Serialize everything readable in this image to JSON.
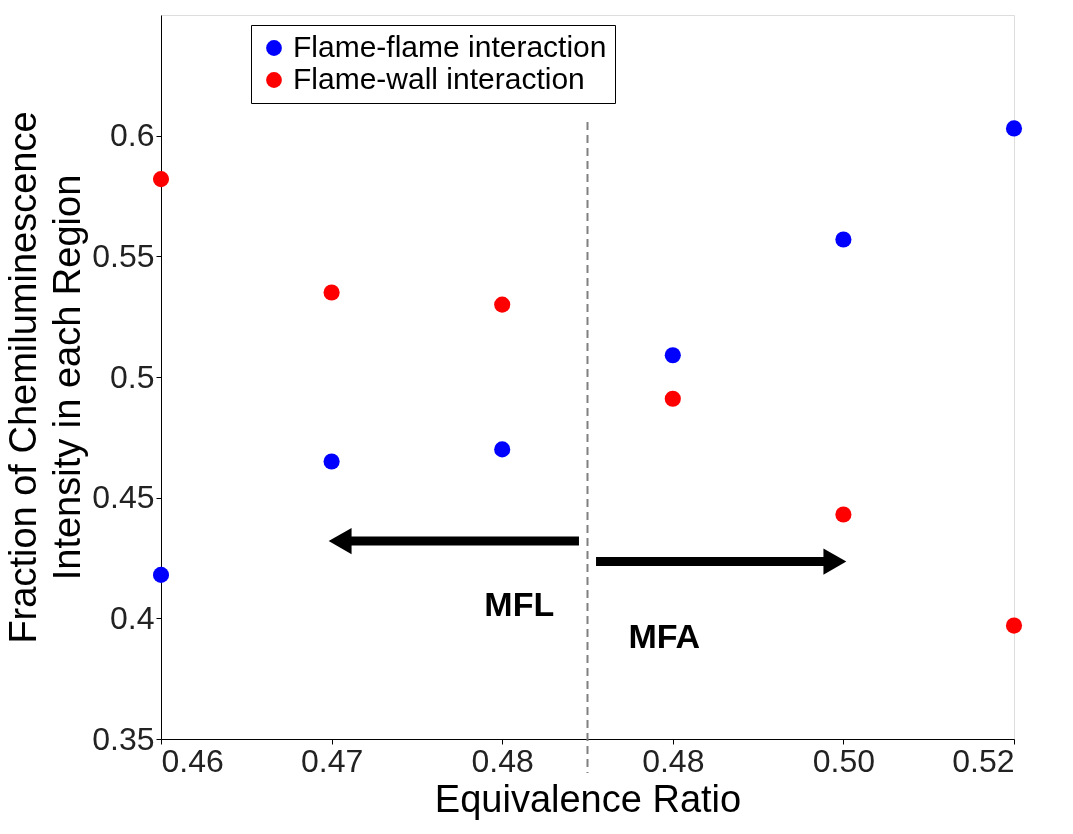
{
  "chart_data": {
    "type": "scatter",
    "xlabel": "Equivalence Ratio",
    "ylabel": "Fraction of Chemiluminescence Intensity in each Region",
    "categories": [
      "0.46",
      "0.47",
      "0.48",
      "0.48",
      "0.50",
      "0.52"
    ],
    "series": [
      {
        "name": "Flame-flame interaction",
        "color": "#0000ff",
        "values": [
          0.418,
          0.465,
          0.47,
          0.509,
          0.557,
          0.603
        ]
      },
      {
        "name": "Flame-wall interaction",
        "color": "#ff0000",
        "values": [
          0.582,
          0.535,
          0.53,
          0.491,
          0.443,
          0.397
        ]
      }
    ],
    "ylim": [
      0.35,
      0.65
    ],
    "yticks": [
      0.35,
      0.4,
      0.45,
      0.5,
      0.55,
      0.6
    ],
    "annotations": [
      "MFL",
      "MFA"
    ],
    "marker": "circle",
    "grid": false,
    "legend": "top"
  }
}
